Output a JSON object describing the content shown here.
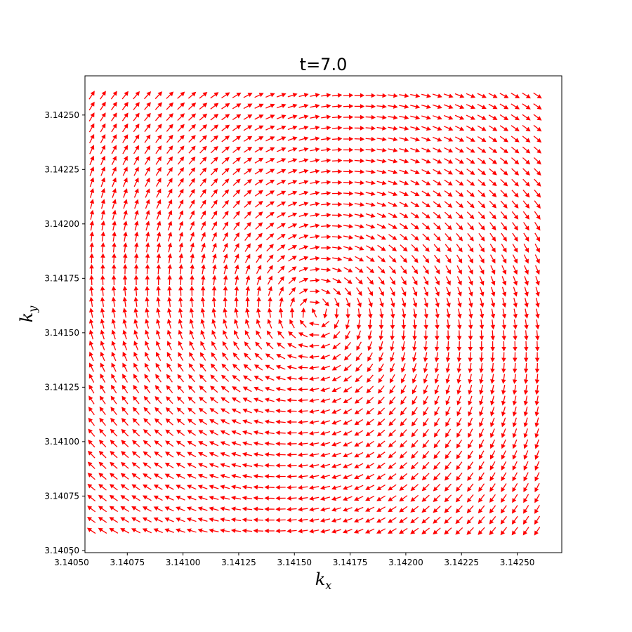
{
  "chart_data": {
    "type": "quiver",
    "title": "t=7.0",
    "xlabel_main": "k",
    "xlabel_sub": "x",
    "ylabel_main": "k",
    "ylabel_sub": "y",
    "xlim": [
      3.14056,
      3.1427
    ],
    "ylim": [
      3.14049,
      3.14268
    ],
    "xticks": [
      3.1405,
      3.14075,
      3.141,
      3.14125,
      3.1415,
      3.14175,
      3.142,
      3.14225,
      3.1425
    ],
    "xtick_labels": [
      "3.14050",
      "3.14075",
      "3.14100",
      "3.14125",
      "3.14150",
      "3.14175",
      "3.14200",
      "3.14225",
      "3.14250"
    ],
    "yticks": [
      3.1405,
      3.14075,
      3.141,
      3.14125,
      3.1415,
      3.14175,
      3.142,
      3.14225,
      3.1425
    ],
    "ytick_labels": [
      "3.14050",
      "3.14075",
      "3.14100",
      "3.14125",
      "3.14150",
      "3.14175",
      "3.14200",
      "3.14225",
      "3.14250"
    ],
    "grid": {
      "x_start": 3.14059,
      "x_end": 3.14259,
      "nx": 41,
      "y_start": 3.14059,
      "y_end": 3.14259,
      "ny": 41
    },
    "field": {
      "center": [
        3.141593,
        3.141593
      ],
      "vortex_core_radius": 0.0001,
      "arrow_color": "#ff0000"
    },
    "grid_on": false,
    "legend": "none"
  }
}
